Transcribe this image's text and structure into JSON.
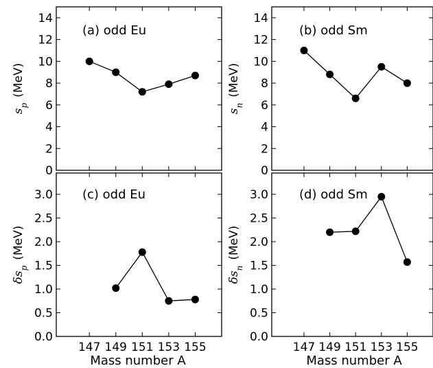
{
  "colors": {
    "line": "#000000",
    "marker": "#000000",
    "frame": "#000000",
    "background": "#ffffff"
  },
  "xlabel": "Mass number A",
  "chart_data": [
    {
      "type": "line",
      "label": "(a) odd Eu",
      "ylabel_symbol": "s",
      "ylabel_sub": "p",
      "ylabel_unit": "(MeV)",
      "x": [
        147,
        149,
        151,
        153,
        155
      ],
      "values": [
        10.0,
        9.0,
        7.2,
        7.9,
        8.7
      ],
      "xlim": [
        144.5,
        157
      ],
      "ylim": [
        0,
        15
      ],
      "yticks": [
        0,
        2,
        4,
        6,
        8,
        10,
        12,
        14
      ],
      "ytick_labels": [
        "0",
        "2",
        "4",
        "6",
        "8",
        "10",
        "12",
        "14"
      ],
      "xticks": [
        147,
        149,
        151,
        153,
        155
      ],
      "xtick_labels": [],
      "show_ylabels": true
    },
    {
      "type": "line",
      "label": "(b) odd Sm",
      "ylabel_symbol": "s",
      "ylabel_sub": "n",
      "ylabel_unit": "(MeV)",
      "x": [
        147,
        149,
        151,
        153,
        155
      ],
      "values": [
        11.0,
        8.8,
        6.6,
        9.5,
        8.0
      ],
      "xlim": [
        144.5,
        157
      ],
      "ylim": [
        0,
        15
      ],
      "yticks": [
        0,
        2,
        4,
        6,
        8,
        10,
        12,
        14
      ],
      "ytick_labels": [
        "0",
        "2",
        "4",
        "6",
        "8",
        "10",
        "12",
        "14"
      ],
      "xticks": [
        147,
        149,
        151,
        153,
        155
      ],
      "xtick_labels": [],
      "show_ylabels": true
    },
    {
      "type": "line",
      "label": "(c) odd Eu",
      "ylabel_symbol": "δs",
      "ylabel_sub": "p",
      "ylabel_unit": "(MeV)",
      "x": [
        149,
        151,
        153,
        155
      ],
      "values": [
        1.02,
        1.78,
        0.75,
        0.78
      ],
      "xlim": [
        144.5,
        157
      ],
      "ylim": [
        0,
        3.45
      ],
      "yticks": [
        0,
        0.5,
        1.0,
        1.5,
        2.0,
        2.5,
        3.0
      ],
      "ytick_labels": [
        "0.0",
        "0.5",
        "1.0",
        "1.5",
        "2.0",
        "2.5",
        "3.0"
      ],
      "xticks": [
        147,
        149,
        151,
        153,
        155
      ],
      "xtick_labels": [
        "147",
        "149",
        "151",
        "153",
        "155"
      ],
      "show_ylabels": true
    },
    {
      "type": "line",
      "label": "(d) odd Sm",
      "ylabel_symbol": "δs",
      "ylabel_sub": "n",
      "ylabel_unit": "(MeV)",
      "x": [
        149,
        151,
        153,
        155
      ],
      "values": [
        2.2,
        2.22,
        2.95,
        1.57
      ],
      "xlim": [
        144.5,
        157
      ],
      "ylim": [
        0,
        3.45
      ],
      "yticks": [
        0,
        0.5,
        1.0,
        1.5,
        2.0,
        2.5,
        3.0
      ],
      "ytick_labels": [
        "0.0",
        "0.5",
        "1.0",
        "1.5",
        "2.0",
        "2.5",
        "3.0"
      ],
      "xticks": [
        147,
        149,
        151,
        153,
        155
      ],
      "xtick_labels": [
        "147",
        "149",
        "151",
        "153",
        "155"
      ],
      "show_ylabels": true
    }
  ]
}
